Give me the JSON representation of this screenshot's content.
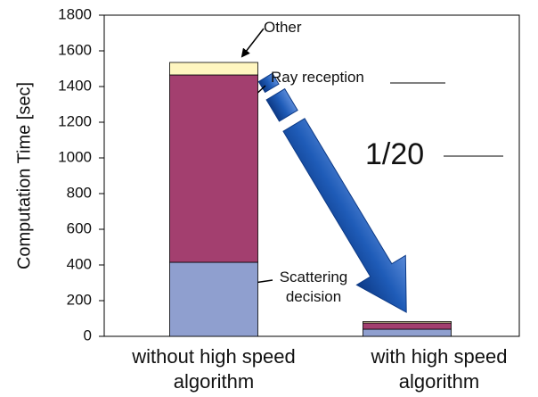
{
  "chart_data": {
    "type": "stacked_bar",
    "y_label": "Computation Time [sec]",
    "categories": [
      "without high speed algorithm",
      "with high speed algorithm"
    ],
    "series": [
      {
        "name": "Scattering decision",
        "color": "#8f9fcf",
        "values": [
          415,
          40
        ]
      },
      {
        "name": "Ray reception",
        "color": "#a33f6f",
        "values": [
          1050,
          35
        ]
      },
      {
        "name": "Other",
        "color": "#fff6c0",
        "values": [
          70,
          8
        ]
      }
    ],
    "annotation": "1/20",
    "ylim": [
      0,
      1800
    ],
    "yticks": [
      0,
      200,
      400,
      600,
      800,
      1000,
      1200,
      1400,
      1600,
      1800
    ],
    "grid": false
  }
}
